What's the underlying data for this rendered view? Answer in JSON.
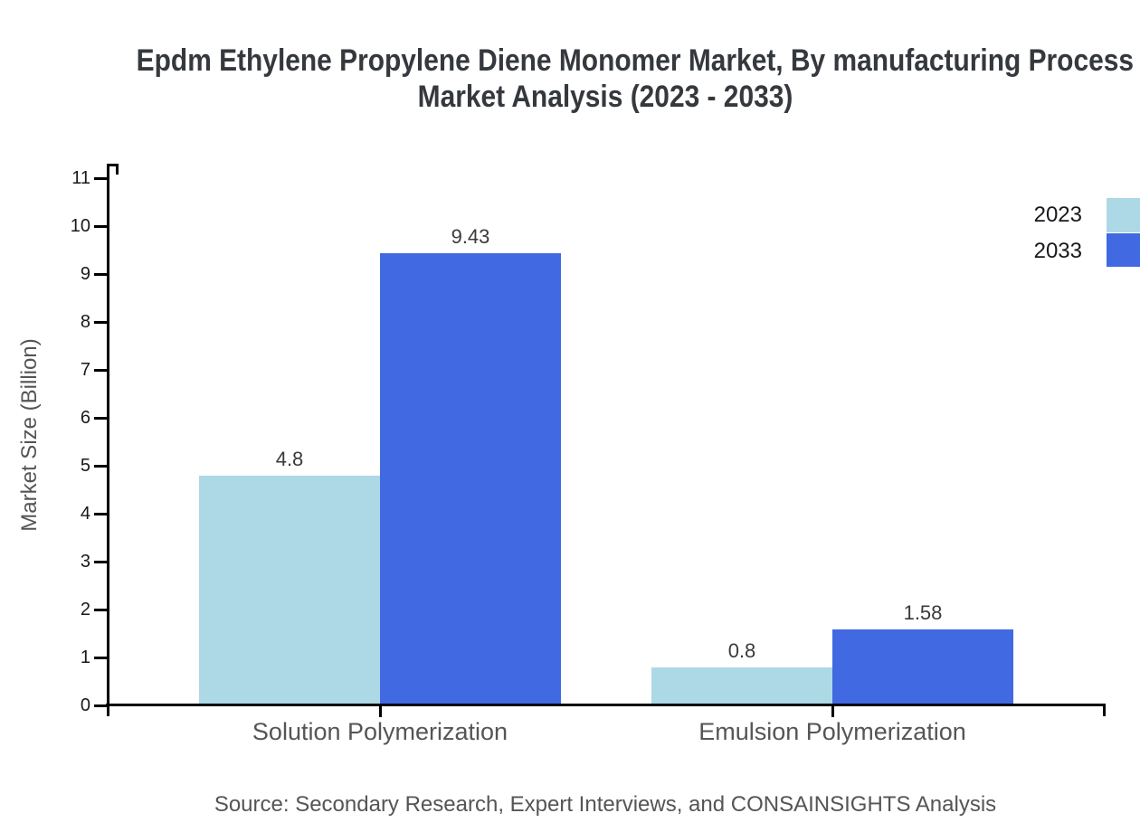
{
  "header": {
    "title_line1": "Epdm Ethylene Propylene Diene Monomer Market, By manufacturing Process",
    "title_line2": "Market Analysis (2023 - 2033)"
  },
  "chart_data": {
    "type": "bar",
    "categories": [
      "Solution Polymerization",
      "Emulsion Polymerization"
    ],
    "series": [
      {
        "name": "2023",
        "color": "#ADD8E6",
        "values": [
          4.8,
          0.8
        ]
      },
      {
        "name": "2033",
        "color": "#4169E1",
        "values": [
          9.43,
          1.58
        ]
      }
    ],
    "value_labels": [
      [
        "4.8",
        "0.8"
      ],
      [
        "9.43",
        "1.58"
      ]
    ],
    "title": "Epdm Ethylene Propylene Diene Monomer Market, By manufacturing Process Market Analysis (2023 - 2033)",
    "xlabel": "",
    "ylabel": "Market Size (Billion)",
    "ylim": [
      0,
      11
    ],
    "ytick_step": 1,
    "ytick_labels": [
      "0",
      "1",
      "2",
      "3",
      "4",
      "5",
      "6",
      "7",
      "8",
      "9",
      "10",
      "11"
    ],
    "grid": false,
    "legend_position": "right-edge-cropped"
  },
  "legend": {
    "items": [
      {
        "label": "2023",
        "color": "#ADD8E6"
      },
      {
        "label": "2033",
        "color": "#4169E1"
      }
    ]
  },
  "footer": {
    "source": "Source: Secondary Research, Expert Interviews, and CONSAINSIGHTS Analysis"
  },
  "colors": {
    "axis": "#000000",
    "title_text": "#35393e",
    "tick_text": "#17191c",
    "muted_text": "#555555",
    "value_text": "#3a3a3a",
    "background": "#ffffff"
  }
}
